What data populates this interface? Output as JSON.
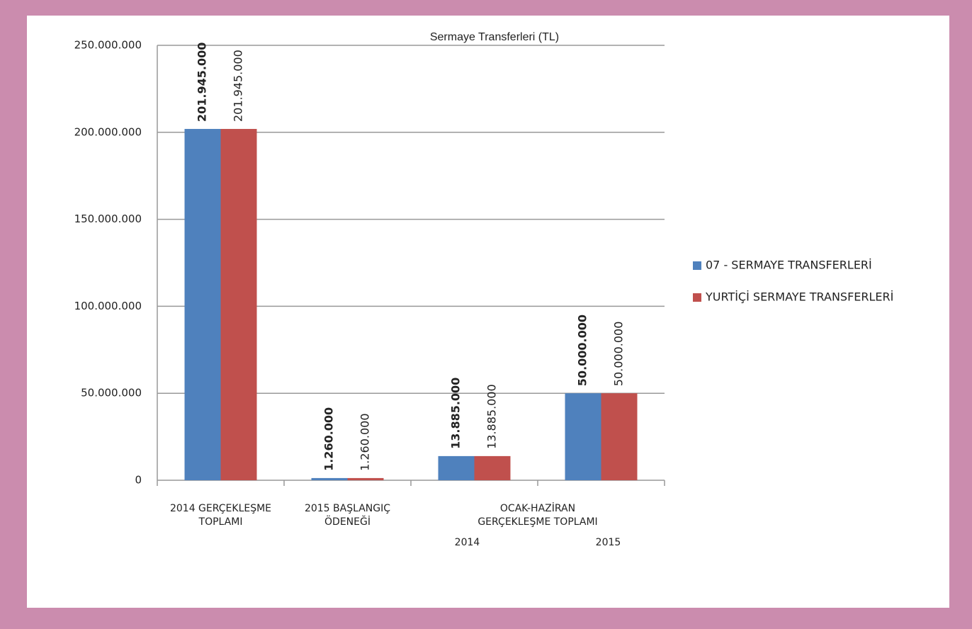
{
  "chart_data": {
    "type": "bar",
    "title": "Sermaye Transferleri (TL)",
    "categories": [
      "2014 GERÇEKLEŞME\nTOPLAMI",
      "2015 BAŞLANGIÇ\nÖDENEĞİ",
      "2014",
      "2015"
    ],
    "category_group": {
      "label": "OCAK-HAZİRAN\nGERÇEKLEŞME TOPLAMI",
      "categories": [
        2,
        3
      ]
    },
    "series": [
      {
        "name": "07 - SERMAYE TRANSFERLERİ",
        "color": "#4f81bd",
        "values": [
          201945000,
          1260000,
          13885000,
          50000000
        ],
        "value_labels": [
          "201.945.000",
          "1.260.000",
          "13.885.000",
          "50.000.000"
        ]
      },
      {
        "name": "YURTİÇİ SERMAYE TRANSFERLERİ",
        "color": "#c0504d",
        "values": [
          201945000,
          1260000,
          13885000,
          50000000
        ],
        "value_labels": [
          "201.945.000",
          "1.260.000",
          "13.885.000",
          "50.000.000"
        ]
      }
    ],
    "ylim": [
      0,
      250000000
    ],
    "yticks": [
      0,
      {
        "value": 50000000,
        "label": "50.000.000"
      },
      {
        "value": 100000000,
        "label": "100.000.000"
      },
      {
        "value": 150000000,
        "label": "150.000.000"
      },
      {
        "value": 200000000,
        "label": "200.000.000"
      },
      {
        "value": 250000000,
        "label": "250.000.000"
      }
    ],
    "grid": true,
    "legend": "right"
  }
}
